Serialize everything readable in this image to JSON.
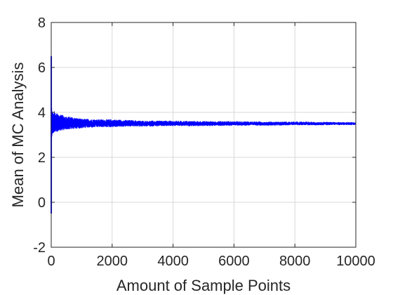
{
  "chart_data": {
    "type": "line",
    "title": "",
    "xlabel": "Amount of Sample Points",
    "ylabel": "Mean of MC Analysis",
    "xlim": [
      0,
      10000
    ],
    "ylim": [
      -2,
      8
    ],
    "xticks": [
      0,
      2000,
      4000,
      6000,
      8000,
      10000
    ],
    "yticks": [
      -2,
      0,
      2,
      4,
      6,
      8
    ],
    "xtick_labels": [
      "0",
      "2000",
      "4000",
      "6000",
      "8000",
      "10000"
    ],
    "ytick_labels": [
      "-2",
      "0",
      "2",
      "4",
      "6",
      "8"
    ],
    "grid": true,
    "legend": "none",
    "series": [
      {
        "color": "#0000ff",
        "converges_to": 3.5,
        "x": [
          1,
          2,
          3,
          4,
          5,
          6,
          8,
          10,
          12,
          15,
          20,
          25,
          30,
          40,
          50,
          60,
          80,
          100,
          120,
          150,
          200,
          250,
          300,
          400,
          500,
          600,
          800,
          1000,
          1200,
          1500,
          2000,
          2500,
          3000,
          4000,
          5000,
          6000,
          7000,
          8000,
          9000,
          10000
        ],
        "y_upper": [
          6.5,
          6.2,
          5.8,
          5.3,
          5.0,
          4.8,
          4.6,
          4.5,
          4.4,
          4.3,
          4.2,
          4.15,
          4.1,
          4.05,
          4.0,
          4.0,
          4.0,
          4.05,
          4.0,
          3.95,
          3.95,
          3.9,
          3.9,
          3.85,
          3.8,
          3.8,
          3.75,
          3.7,
          3.7,
          3.68,
          3.68,
          3.65,
          3.62,
          3.62,
          3.6,
          3.6,
          3.58,
          3.58,
          3.56,
          3.55
        ],
        "y_lower": [
          -0.5,
          0.2,
          1.0,
          1.8,
          2.2,
          2.4,
          2.6,
          2.7,
          2.8,
          2.85,
          2.9,
          2.95,
          3.0,
          3.05,
          3.05,
          3.1,
          3.1,
          3.1,
          3.15,
          3.15,
          3.15,
          3.2,
          3.2,
          3.22,
          3.25,
          3.25,
          3.28,
          3.3,
          3.32,
          3.35,
          3.35,
          3.38,
          3.38,
          3.4,
          3.4,
          3.42,
          3.42,
          3.44,
          3.44,
          3.45
        ]
      }
    ]
  }
}
